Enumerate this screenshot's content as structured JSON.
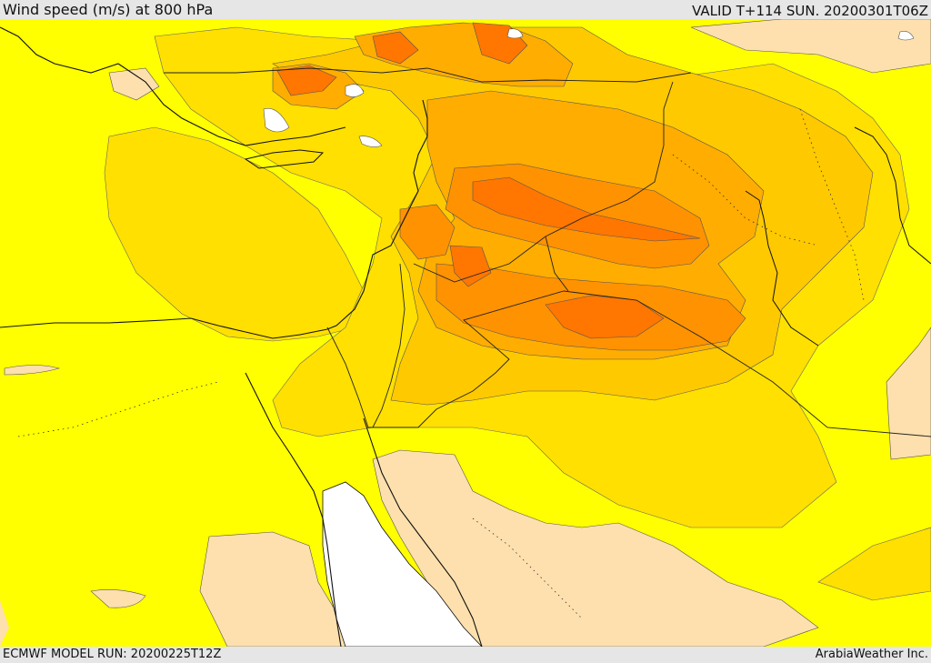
{
  "header": {
    "title": "Wind speed (m/s) at 800 hPa",
    "valid": "VALID T+114 SUN. 20200301T06Z"
  },
  "footer": {
    "model_run": "ECMWF MODEL RUN: 20200225T12Z",
    "credit": "ArabiaWeather Inc."
  },
  "map": {
    "field": "wind speed at 800 hPa",
    "colors": {
      "calm_white": "#ffffff",
      "light_tan": "#fde0ad",
      "yellow": "#ffff00",
      "light_gold": "#ffe000",
      "gold": "#ffc900",
      "orange_light": "#ffad00",
      "orange": "#ff9200",
      "orange_dark": "#ff7600",
      "red_orange": "#ff5a00",
      "border_line": "#222222",
      "coastline": "#111111"
    }
  }
}
